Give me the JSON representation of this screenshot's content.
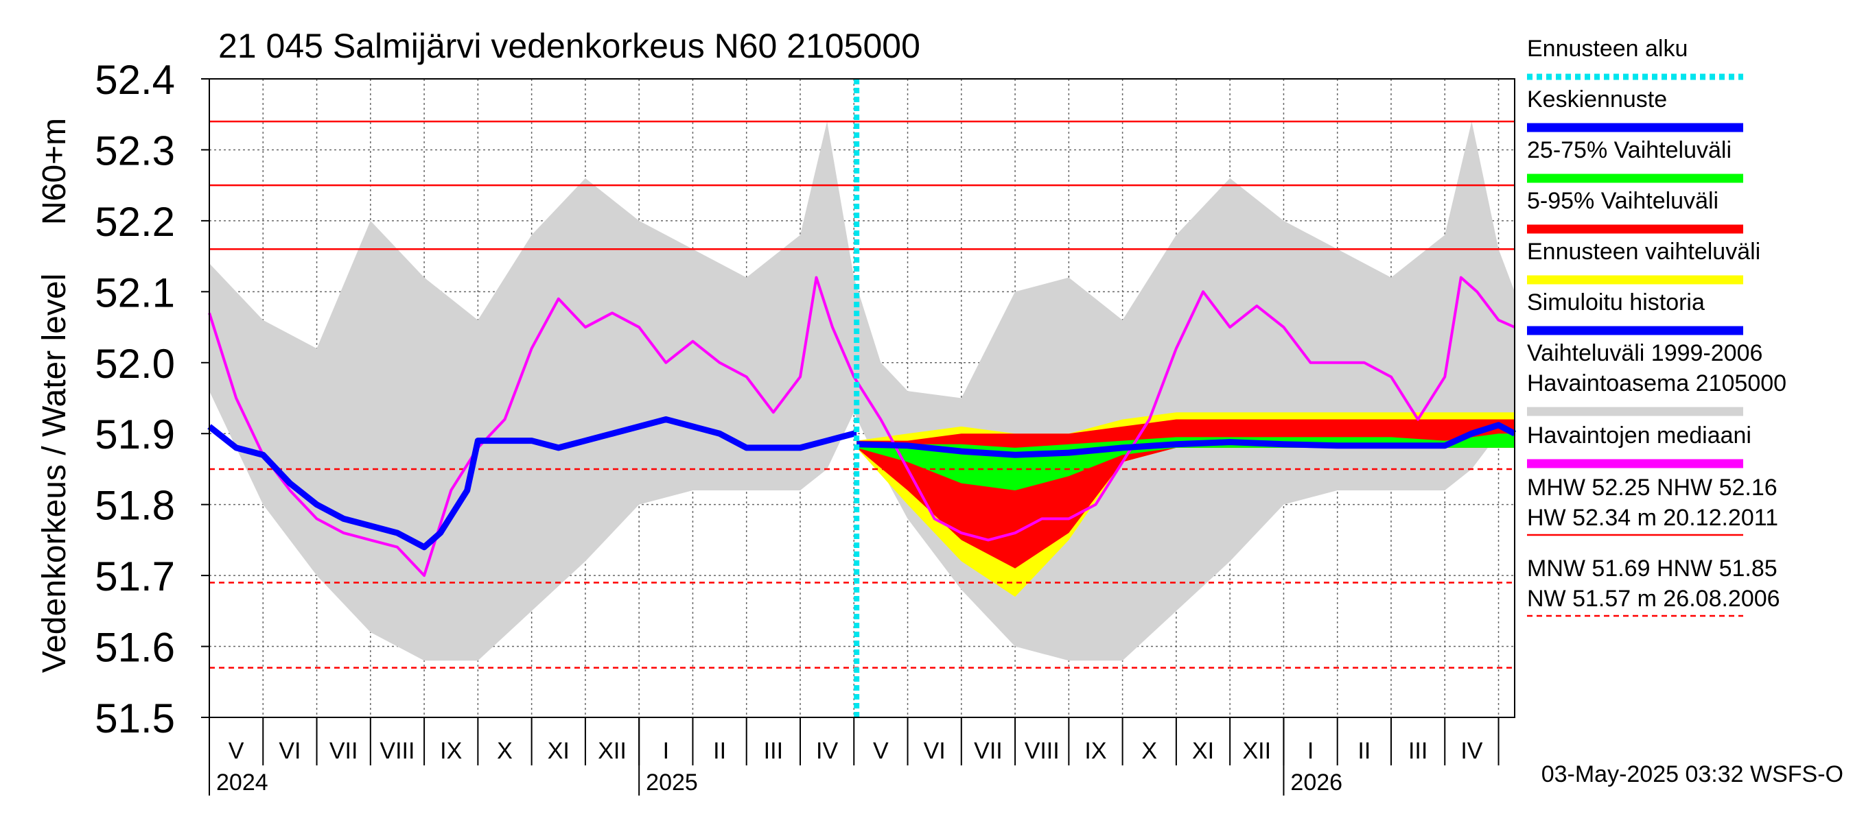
{
  "chart_data": {
    "type": "line",
    "title": "21 045 Salmijärvi vedenkorkeus N60 2105000",
    "ylabel": "Vedenkorkeus / Water level",
    "yunit": "N60+m",
    "ylim": [
      51.5,
      52.4
    ],
    "yticks": [
      "51.5",
      "51.6",
      "51.7",
      "51.8",
      "51.9",
      "52.0",
      "52.1",
      "52.2",
      "52.3",
      "52.4"
    ],
    "x_range_months": [
      0,
      24.3
    ],
    "x_origin": "2024-05-01",
    "month_labels": [
      "V",
      "VI",
      "VII",
      "VIII",
      "IX",
      "X",
      "XI",
      "XII",
      "I",
      "II",
      "III",
      "IV",
      "V",
      "VI",
      "VII",
      "VIII",
      "IX",
      "X",
      "XI",
      "XII",
      "I",
      "II",
      "III",
      "IV"
    ],
    "year_labels": [
      {
        "label": "2024",
        "month": 0
      },
      {
        "label": "2025",
        "month": 8
      },
      {
        "label": "2026",
        "month": 20
      }
    ],
    "forecast_start_month": 12.05,
    "reference_levels": [
      {
        "name": "HW",
        "value": 52.34,
        "style": "solid",
        "color": "#ff0000"
      },
      {
        "name": "MHW",
        "value": 52.25,
        "style": "solid",
        "color": "#ff0000"
      },
      {
        "name": "NHW",
        "value": 52.16,
        "style": "solid",
        "color": "#ff0000"
      },
      {
        "name": "HNW",
        "value": 51.85,
        "style": "dashed",
        "color": "#ff0000"
      },
      {
        "name": "MNW",
        "value": 51.69,
        "style": "dashed",
        "color": "#ff0000"
      },
      {
        "name": "NW",
        "value": 51.57,
        "style": "dashed",
        "color": "#ff0000"
      }
    ],
    "series": [
      {
        "name": "Vaihteluväli 1999-2006 Havaintoasema 2105000",
        "kind": "band",
        "color": "#d3d3d3",
        "x": [
          0,
          0.5,
          1,
          2,
          3,
          4,
          5,
          6,
          7,
          8,
          9,
          10,
          11,
          11.5,
          12,
          12.5,
          13,
          14,
          15,
          16,
          17,
          18,
          19,
          20,
          21,
          22,
          23,
          23.5,
          24,
          24.3
        ],
        "lower": [
          51.96,
          51.88,
          51.8,
          51.7,
          51.62,
          51.58,
          51.58,
          51.65,
          51.72,
          51.8,
          51.82,
          51.82,
          51.82,
          51.85,
          51.93,
          51.85,
          51.78,
          51.68,
          51.6,
          51.58,
          51.58,
          51.65,
          51.72,
          51.8,
          51.82,
          51.82,
          51.82,
          51.85,
          51.9,
          51.92
        ],
        "upper": [
          52.14,
          52.1,
          52.06,
          52.02,
          52.2,
          52.12,
          52.06,
          52.18,
          52.26,
          52.2,
          52.16,
          52.12,
          52.18,
          52.34,
          52.12,
          52.0,
          51.96,
          51.95,
          52.1,
          52.12,
          52.06,
          52.18,
          52.26,
          52.2,
          52.16,
          52.12,
          52.18,
          52.34,
          52.16,
          52.1
        ]
      },
      {
        "name": "Ennusteen vaihteluväli",
        "kind": "band",
        "color": "#ffff00",
        "x": [
          12.05,
          13,
          14,
          15,
          16,
          17,
          18,
          19,
          20,
          21,
          22,
          23,
          24,
          24.3
        ],
        "lower": [
          51.88,
          51.8,
          51.72,
          51.67,
          51.75,
          51.86,
          51.88,
          51.88,
          51.88,
          51.88,
          51.88,
          51.88,
          51.88,
          51.88
        ],
        "upper": [
          51.89,
          51.9,
          51.91,
          51.9,
          51.9,
          51.92,
          51.93,
          51.93,
          51.93,
          51.93,
          51.93,
          51.93,
          51.93,
          51.93
        ]
      },
      {
        "name": "5-95% Vaihteluväli",
        "kind": "band",
        "color": "#ff0000",
        "x": [
          12.05,
          13,
          14,
          15,
          16,
          17,
          18,
          19,
          20,
          21,
          22,
          23,
          24,
          24.3
        ],
        "lower": [
          51.88,
          51.82,
          51.75,
          51.71,
          51.76,
          51.86,
          51.88,
          51.88,
          51.88,
          51.88,
          51.88,
          51.88,
          51.88,
          51.88
        ],
        "upper": [
          51.89,
          51.89,
          51.9,
          51.9,
          51.9,
          51.91,
          51.92,
          51.92,
          51.92,
          51.92,
          51.92,
          51.92,
          51.92,
          51.92
        ]
      },
      {
        "name": "25-75% Vaihteluväli",
        "kind": "band",
        "color": "#00ff00",
        "x": [
          12.05,
          13,
          14,
          15,
          16,
          17,
          18,
          19,
          20,
          21,
          22,
          23,
          24,
          24.3
        ],
        "lower": [
          51.88,
          51.86,
          51.83,
          51.82,
          51.84,
          51.87,
          51.88,
          51.88,
          51.88,
          51.88,
          51.88,
          51.88,
          51.88,
          51.88
        ],
        "upper": [
          51.885,
          51.885,
          51.885,
          51.88,
          51.885,
          51.89,
          51.895,
          51.895,
          51.895,
          51.895,
          51.895,
          51.89,
          51.9,
          51.9
        ]
      },
      {
        "name": "Havaintojen mediaani",
        "kind": "line",
        "color": "#ff00ff",
        "x": [
          0,
          0.5,
          1,
          1.5,
          2,
          2.5,
          3,
          3.5,
          4,
          4.5,
          5,
          5.5,
          6,
          6.5,
          7,
          7.5,
          8,
          8.5,
          9,
          9.5,
          10,
          10.5,
          11,
          11.3,
          11.6,
          12,
          12.5,
          13,
          13.5,
          14,
          14.5,
          15,
          15.5,
          16,
          16.5,
          17,
          17.5,
          18,
          18.5,
          19,
          19.5,
          20,
          20.5,
          21,
          21.5,
          22,
          22.5,
          23,
          23.3,
          23.6,
          24,
          24.3
        ],
        "y": [
          52.07,
          51.95,
          51.87,
          51.82,
          51.78,
          51.76,
          51.75,
          51.74,
          51.7,
          51.82,
          51.88,
          51.92,
          52.02,
          52.09,
          52.05,
          52.07,
          52.05,
          52.0,
          52.03,
          52.0,
          51.98,
          51.93,
          51.98,
          52.12,
          52.05,
          51.98,
          51.92,
          51.85,
          51.78,
          51.76,
          51.75,
          51.76,
          51.78,
          51.78,
          51.8,
          51.86,
          51.92,
          52.02,
          52.1,
          52.05,
          52.08,
          52.05,
          52.0,
          52.0,
          52.0,
          51.98,
          51.92,
          51.98,
          52.12,
          52.1,
          52.06,
          52.05
        ]
      },
      {
        "name": "Simuloitu historia",
        "kind": "line",
        "color": "#0000ff",
        "x": [
          0,
          0.5,
          1,
          1.5,
          2,
          2.5,
          3,
          3.5,
          4,
          4.3,
          4.8,
          5,
          6,
          6.5,
          7,
          7.5,
          8,
          8.5,
          9,
          9.5,
          10,
          11,
          11.5,
          12,
          12.05
        ],
        "y": [
          51.91,
          51.88,
          51.87,
          51.83,
          51.8,
          51.78,
          51.77,
          51.76,
          51.74,
          51.76,
          51.82,
          51.89,
          51.89,
          51.88,
          51.89,
          51.9,
          51.91,
          51.92,
          51.91,
          51.9,
          51.88,
          51.88,
          51.89,
          51.9,
          51.9
        ]
      },
      {
        "name": "Keskiennuste",
        "kind": "line",
        "color": "#0000ff",
        "x": [
          12.05,
          13,
          14,
          15,
          16,
          17,
          18,
          19,
          20,
          21,
          22,
          23,
          23.5,
          24,
          24.3
        ],
        "y": [
          51.885,
          51.883,
          51.875,
          51.87,
          51.873,
          51.88,
          51.885,
          51.888,
          51.885,
          51.883,
          51.883,
          51.883,
          51.9,
          51.912,
          51.9
        ]
      }
    ],
    "legend": [
      {
        "label": "Ennusteen alku",
        "color": "#00e5ee",
        "style": "dotted"
      },
      {
        "label": "Keskiennuste",
        "color": "#0000ff",
        "style": "solid"
      },
      {
        "label": "25-75% Vaihteluväli",
        "color": "#00ff00",
        "style": "solid"
      },
      {
        "label": "5-95% Vaihteluväli",
        "color": "#ff0000",
        "style": "solid"
      },
      {
        "label": "Ennusteen vaihteluväli",
        "color": "#ffff00",
        "style": "solid"
      },
      {
        "label": "Simuloitu historia",
        "color": "#0000ff",
        "style": "solid"
      },
      {
        "label": "Vaihteluväli 1999-2006\n Havaintoasema 2105000",
        "color": "#d3d3d3",
        "style": "solid"
      },
      {
        "label": "Havaintojen mediaani",
        "color": "#ff00ff",
        "style": "solid"
      }
    ],
    "stats": [
      {
        "text": "MHW  52.25 NHW  52.16",
        "rule": "none"
      },
      {
        "text": "HW  52.34 m 20.12.2011",
        "rule": "solid"
      },
      {
        "text": "MNW  51.69 HNW  51.85",
        "rule": "none"
      },
      {
        "text": "NW  51.57 m 26.08.2006",
        "rule": "dashed"
      }
    ],
    "timestamp": "03-May-2025 03:32 WSFS-O"
  }
}
